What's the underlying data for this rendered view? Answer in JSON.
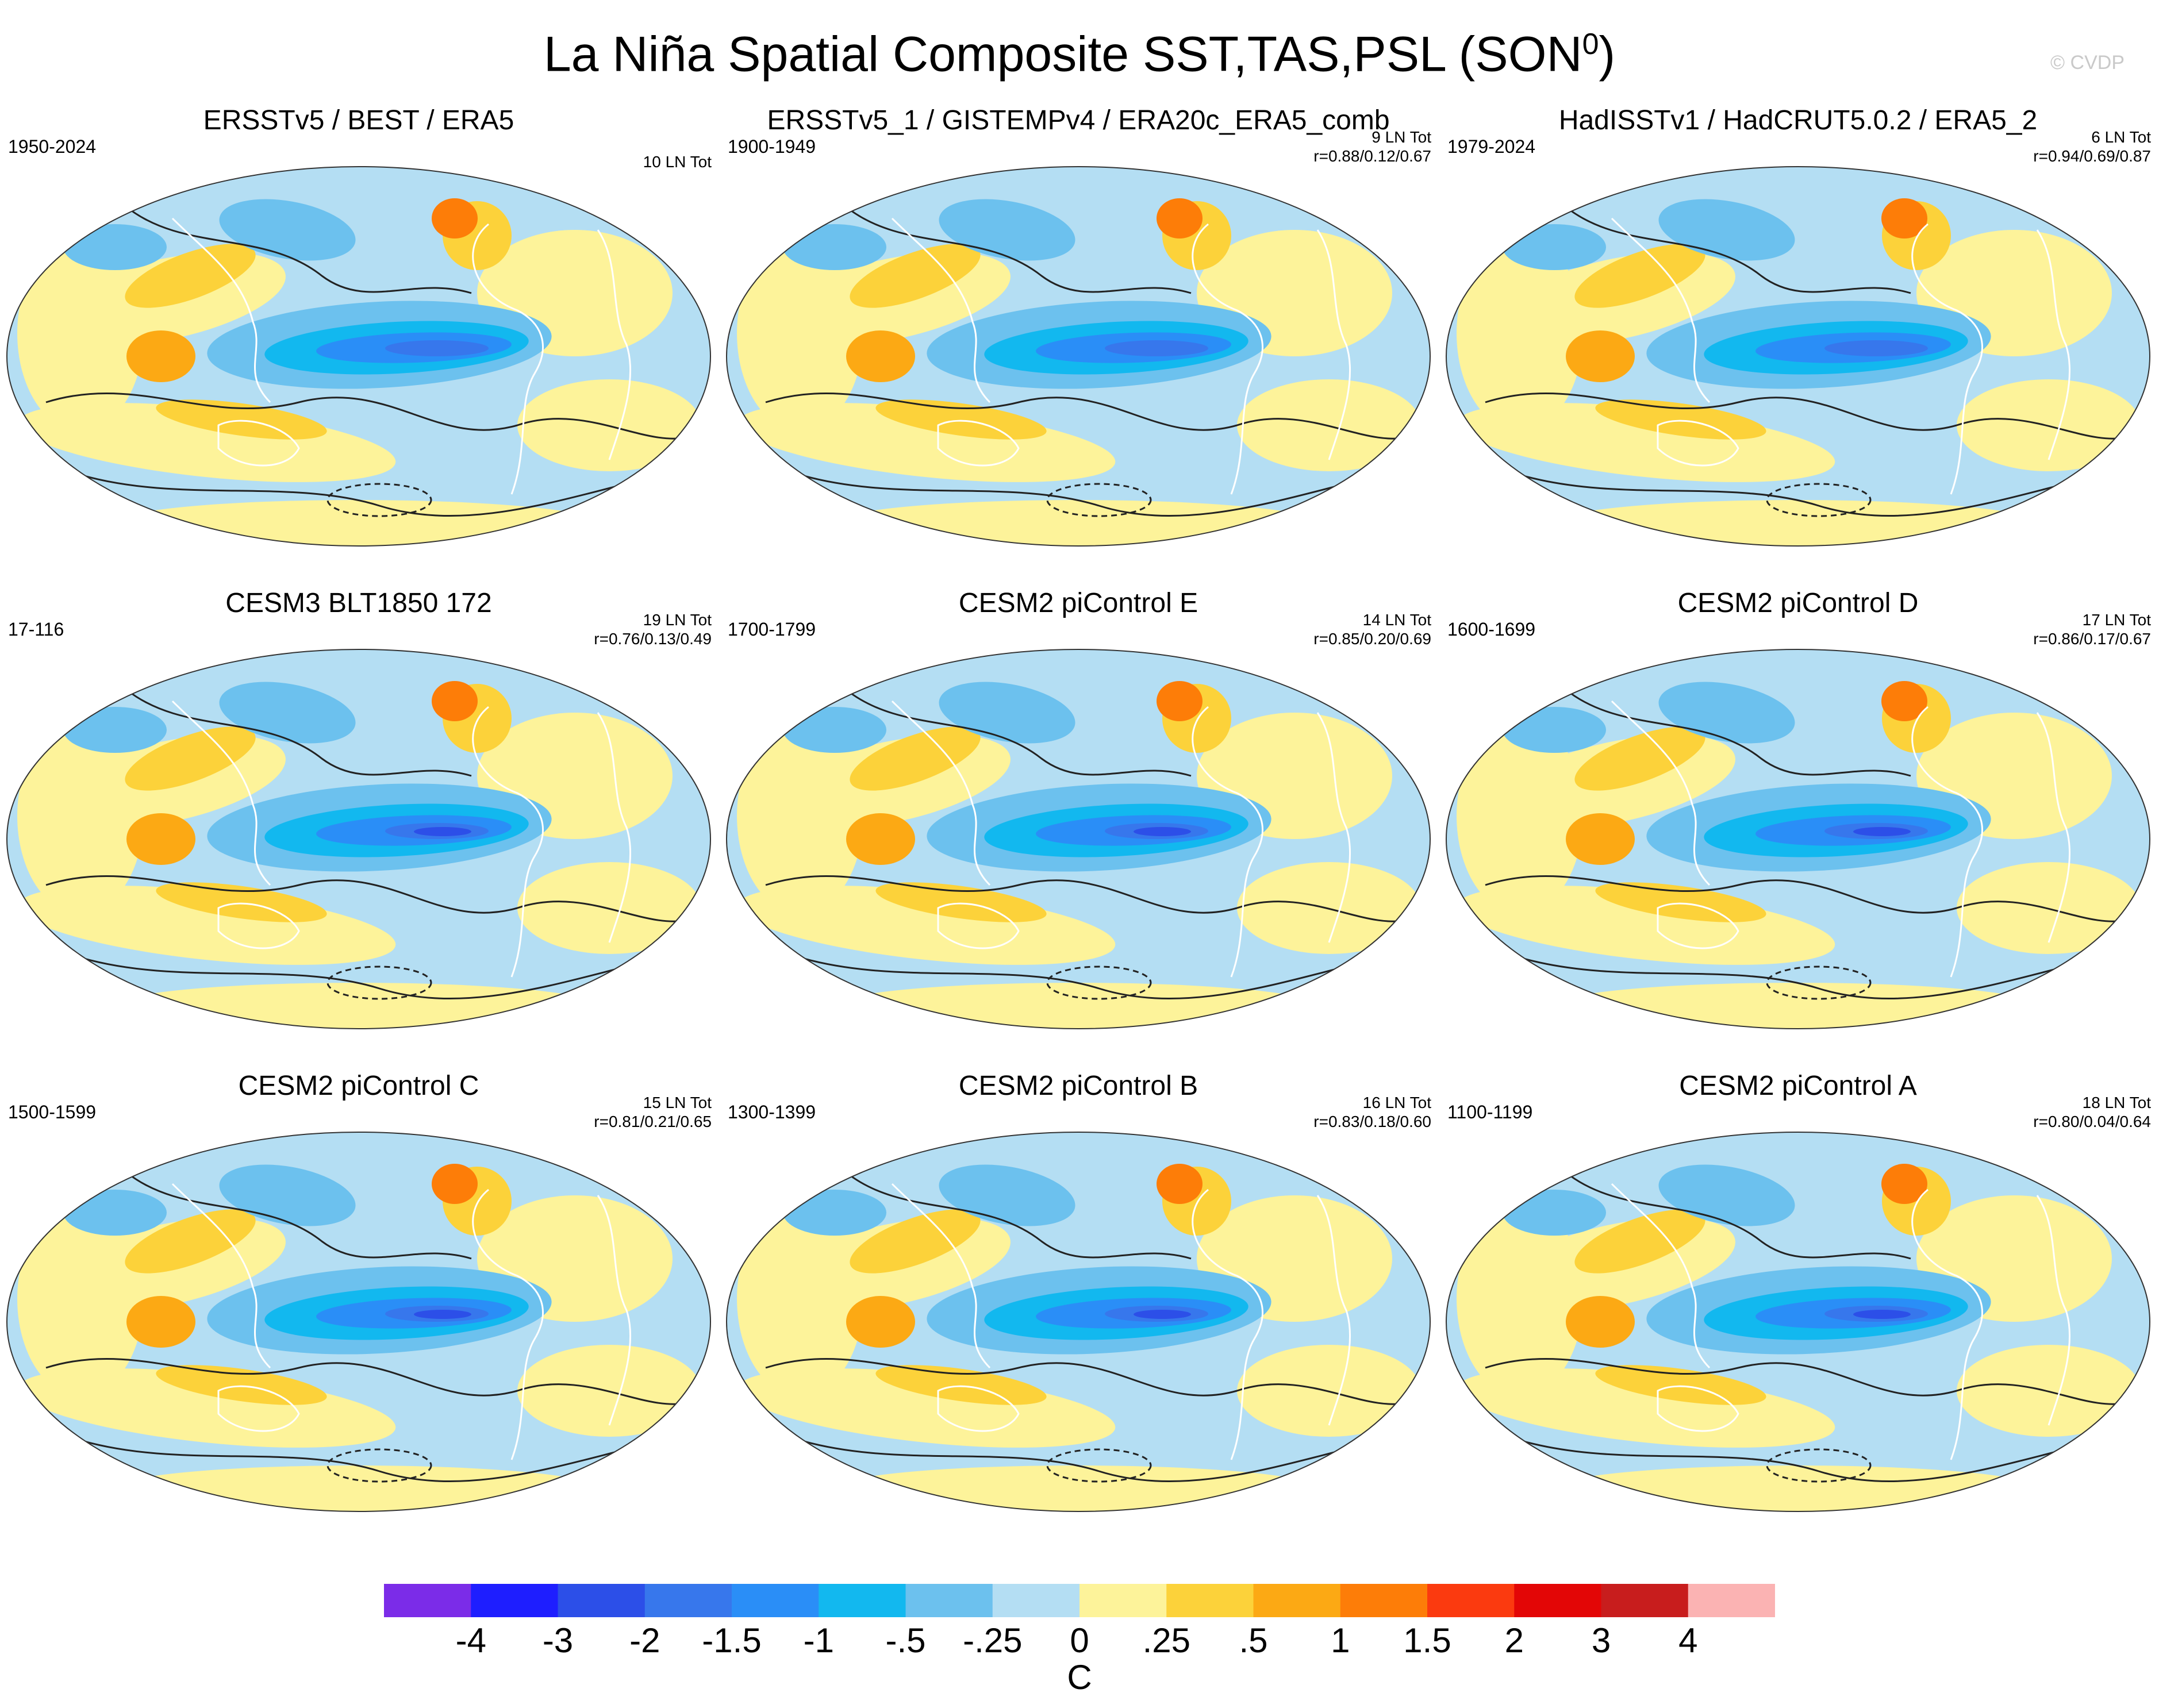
{
  "title": "La Niña Spatial Composite SST,TAS,PSL (SON",
  "title_sup": "0",
  "title_end": ")",
  "credit": "© CVDP",
  "units": "C",
  "colorbar": {
    "colors": [
      "#7b2ce8",
      "#1e1eff",
      "#2c4fe8",
      "#3777ec",
      "#2a8ef7",
      "#12b8ef",
      "#6cc1ee",
      "#b4def3",
      "#fdf39a",
      "#fcd23a",
      "#fca914",
      "#fd7d08",
      "#fb3a0f",
      "#e30606",
      "#c81d1d",
      "#fbb3b3"
    ],
    "labels": [
      "-4",
      "-3",
      "-2",
      "-1.5",
      "-1",
      "-.5",
      "-.25",
      "0",
      ".25",
      ".5",
      "1",
      "1.5",
      "2",
      "3",
      "4"
    ]
  },
  "panels": [
    {
      "title": "ERSSTv5 / BEST / ERA5",
      "period": "1950-2024",
      "count": "10 LN Tot",
      "corr": ""
    },
    {
      "title": "ERSSTv5_1 / GISTEMPv4 / ERA20c_ERA5_comb",
      "period": "1900-1949",
      "count": "9 LN Tot",
      "corr": "r=0.88/0.12/0.67"
    },
    {
      "title": "HadISSTv1 / HadCRUT5.0.2 / ERA5_2",
      "period": "1979-2024",
      "count": "6 LN Tot",
      "corr": "r=0.94/0.69/0.87"
    },
    {
      "title": "CESM3 BLT1850 172",
      "period": "17-116",
      "count": "19 LN Tot",
      "corr": "r=0.76/0.13/0.49"
    },
    {
      "title": "CESM2 piControl E",
      "period": "1700-1799",
      "count": "14 LN Tot",
      "corr": "r=0.85/0.20/0.69"
    },
    {
      "title": "CESM2 piControl D",
      "period": "1600-1699",
      "count": "17 LN Tot",
      "corr": "r=0.86/0.17/0.67"
    },
    {
      "title": "CESM2 piControl C",
      "period": "1500-1599",
      "count": "15 LN Tot",
      "corr": "r=0.81/0.21/0.65"
    },
    {
      "title": "CESM2 piControl B",
      "period": "1300-1399",
      "count": "16 LN Tot",
      "corr": "r=0.83/0.18/0.60"
    },
    {
      "title": "CESM2 piControl A",
      "period": "1100-1199",
      "count": "18 LN Tot",
      "corr": "r=0.80/0.04/0.64"
    }
  ]
}
